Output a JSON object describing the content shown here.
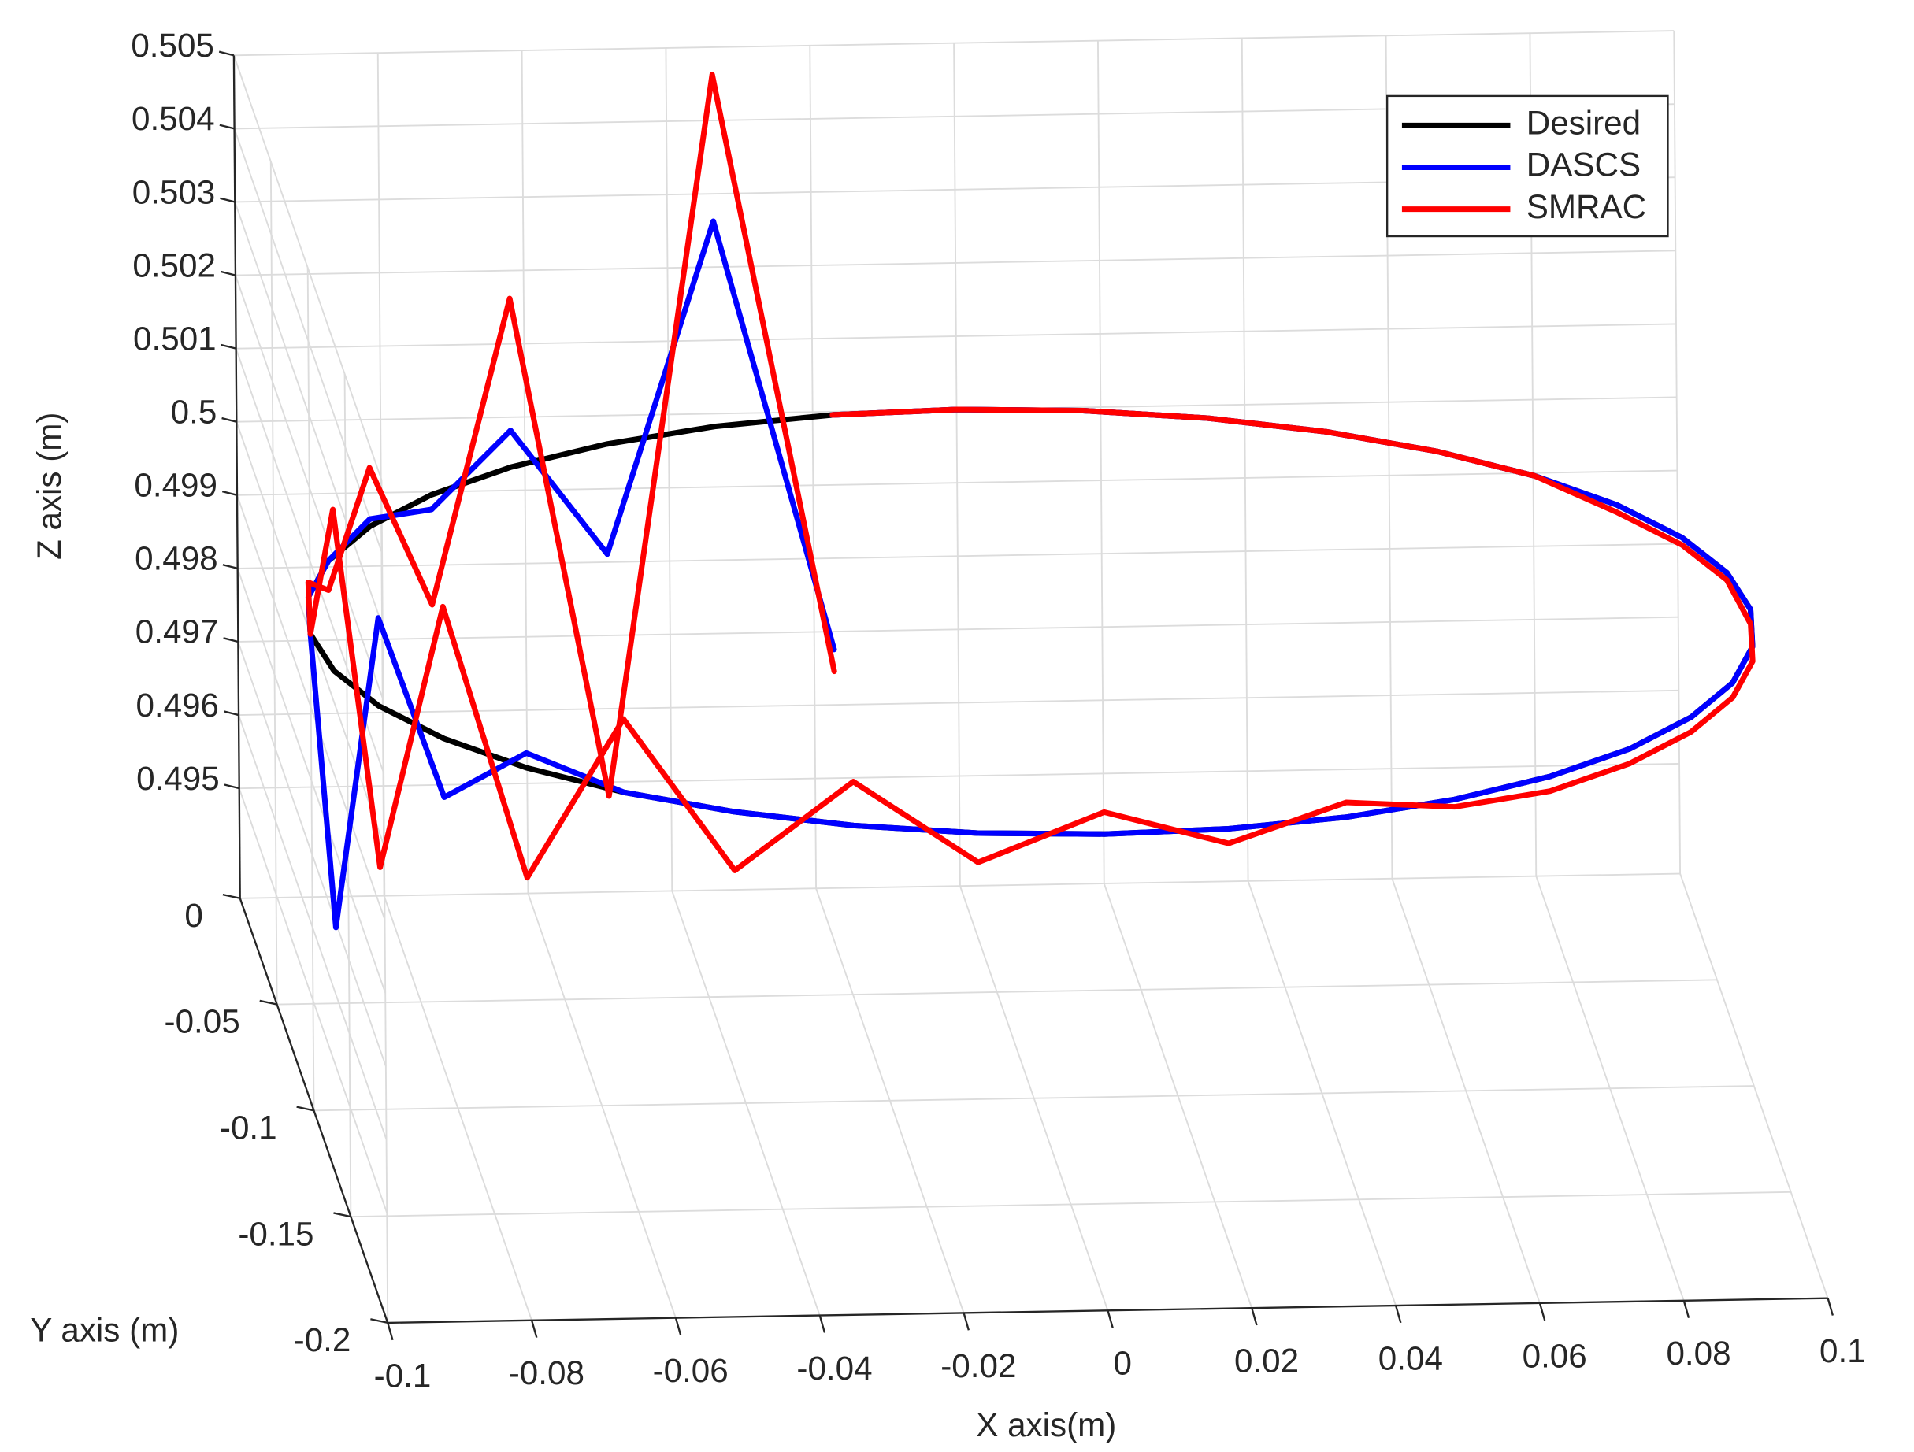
{
  "chart_data": {
    "type": "line3d",
    "xlabel": "X axis(m)",
    "ylabel": "Y axis (m)",
    "zlabel": "Z axis (m)",
    "xlim": [
      -0.1,
      0.1
    ],
    "ylim": [
      -0.2,
      0
    ],
    "zlim": [
      0.4935,
      0.505
    ],
    "xticks": [
      -0.1,
      -0.08,
      -0.06,
      -0.04,
      -0.02,
      0,
      0.02,
      0.04,
      0.06,
      0.08,
      0.1
    ],
    "yticks": [
      -0.2,
      -0.15,
      -0.1,
      -0.05,
      0
    ],
    "zticks": [
      0.495,
      0.496,
      0.497,
      0.498,
      0.499,
      0.5,
      0.501,
      0.502,
      0.503,
      0.504,
      0.505
    ],
    "grid": true,
    "legend": "northeast",
    "x": [
      -0.0174,
      -0.0342,
      -0.05,
      -0.0643,
      -0.0766,
      -0.0866,
      -0.094,
      -0.0985,
      -0.1,
      -0.0985,
      -0.094,
      -0.0866,
      -0.0766,
      -0.0643,
      -0.05,
      -0.0342,
      -0.0174,
      0,
      0.0174,
      0.0342,
      0.05,
      0.0643,
      0.0766,
      0.0866,
      0.094,
      0.0985,
      0.1,
      0.0985,
      0.094,
      0.0866,
      0.0766,
      0.0643,
      0.05,
      0.0342,
      0.0174,
      0,
      -0.0174
    ],
    "y": [
      -0.0015,
      -0.006,
      -0.0134,
      -0.0234,
      -0.0357,
      -0.05,
      -0.0658,
      -0.0826,
      -0.1,
      -0.1174,
      -0.1342,
      -0.15,
      -0.1643,
      -0.1766,
      -0.1866,
      -0.194,
      -0.1985,
      -0.2,
      -0.1985,
      -0.194,
      -0.1866,
      -0.1766,
      -0.1643,
      -0.15,
      -0.1342,
      -0.1174,
      -0.1,
      -0.0826,
      -0.0658,
      -0.05,
      -0.0357,
      -0.0234,
      -0.0134,
      -0.006,
      -0.0015,
      0,
      -0.0015
    ],
    "series": [
      {
        "name": "Desired",
        "color": "#000000",
        "values": [
          0.5,
          0.5,
          0.5,
          0.5,
          0.5,
          0.5,
          0.5,
          0.5,
          0.5,
          0.5,
          0.5,
          0.5,
          0.5,
          0.5,
          0.5,
          0.5,
          0.5,
          0.5,
          0.5,
          0.5,
          0.5,
          0.5,
          0.5,
          0.5,
          0.5,
          0.5,
          0.5,
          0.5,
          0.5,
          0.5,
          0.5,
          0.5,
          0.5,
          0.5,
          0.5,
          0.5,
          0.5
        ]
      },
      {
        "name": "DASCS",
        "color": "#0000ff",
        "values": [
          0.4968,
          0.5028,
          0.4985,
          0.5005,
          0.4998,
          0.5001,
          0.5,
          0.5,
          0.5,
          0.4965,
          0.5012,
          0.4992,
          0.5002,
          0.5,
          0.5,
          0.5,
          0.5,
          0.5,
          0.5,
          0.5,
          0.5,
          0.5,
          0.5,
          0.5,
          0.5,
          0.5,
          0.5,
          0.5,
          0.5,
          0.5,
          0.5,
          0.5,
          0.5,
          0.5,
          0.5,
          0.5,
          0.5
        ]
      },
      {
        "name": "SMRAC",
        "color": "#ff0000",
        "values": [
          0.4965,
          0.5048,
          0.4952,
          0.5023,
          0.4985,
          0.5008,
          0.4996,
          0.5002,
          0.5,
          0.5022,
          0.4978,
          0.5018,
          0.4985,
          0.501,
          0.4992,
          0.5006,
          0.4996,
          0.5003,
          0.4998,
          0.5002,
          0.4999,
          0.4998,
          0.4998,
          0.4998,
          0.4998,
          0.4998,
          0.4998,
          0.4999,
          0.4999,
          0.4999,
          0.5,
          0.5,
          0.5,
          0.5,
          0.5,
          0.5,
          0.5
        ]
      }
    ]
  }
}
